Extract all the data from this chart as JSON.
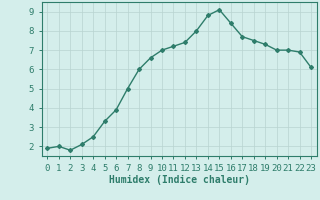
{
  "x": [
    0,
    1,
    2,
    3,
    4,
    5,
    6,
    7,
    8,
    9,
    10,
    11,
    12,
    13,
    14,
    15,
    16,
    17,
    18,
    19,
    20,
    21,
    22,
    23
  ],
  "y": [
    1.9,
    2.0,
    1.8,
    2.1,
    2.5,
    3.3,
    3.9,
    5.0,
    6.0,
    6.6,
    7.0,
    7.2,
    7.4,
    8.0,
    8.8,
    9.1,
    8.4,
    7.7,
    7.5,
    7.3,
    7.0,
    7.0,
    6.9,
    6.1
  ],
  "line_color": "#2e7d6b",
  "marker": "D",
  "marker_size": 2,
  "line_width": 1.0,
  "bg_color": "#d4eeeb",
  "grid_color": "#b8d4d0",
  "xlabel": "Humidex (Indice chaleur)",
  "xlim_min": -0.5,
  "xlim_max": 23.5,
  "ylim_min": 1.5,
  "ylim_max": 9.5,
  "yticks": [
    2,
    3,
    4,
    5,
    6,
    7,
    8,
    9
  ],
  "xticks": [
    0,
    1,
    2,
    3,
    4,
    5,
    6,
    7,
    8,
    9,
    10,
    11,
    12,
    13,
    14,
    15,
    16,
    17,
    18,
    19,
    20,
    21,
    22,
    23
  ],
  "xlabel_fontsize": 7,
  "tick_fontsize": 6.5,
  "spine_color": "#2e7d6b",
  "tick_color": "#2e7d6b",
  "label_color": "#2e7d6b"
}
